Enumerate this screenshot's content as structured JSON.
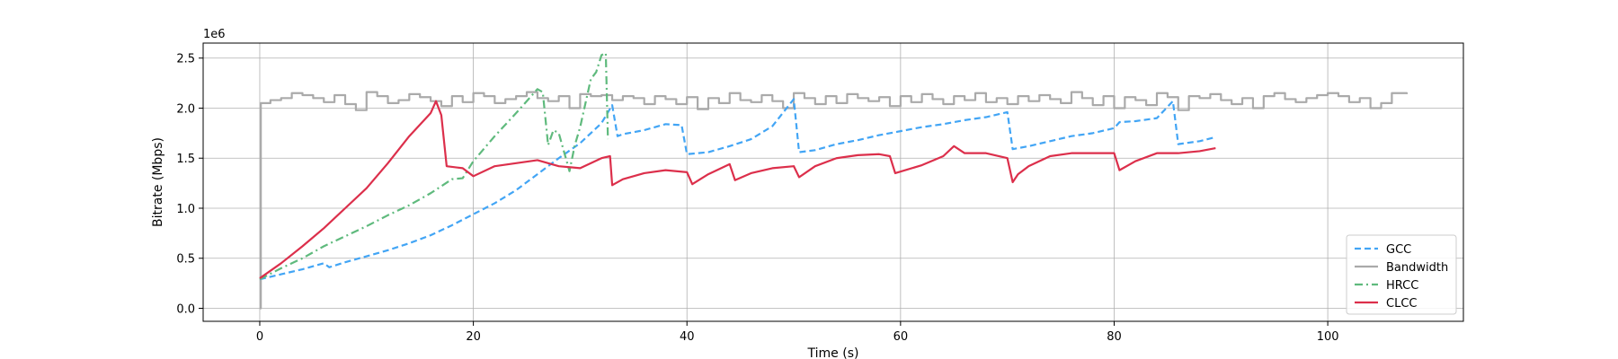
{
  "chart_data": {
    "type": "line",
    "xlabel": "Time (s)",
    "ylabel": "Bitrate (Mbps)",
    "y_offset_label": "1e6",
    "xlim": [
      -5.3,
      112.7
    ],
    "ylim": [
      -0.13,
      2.65
    ],
    "x_ticks": [
      0,
      20,
      40,
      60,
      80,
      100
    ],
    "y_ticks": [
      0.0,
      0.5,
      1.0,
      1.5,
      2.0,
      2.5
    ],
    "x_tick_labels": [
      "0",
      "20",
      "40",
      "60",
      "80",
      "100"
    ],
    "y_tick_labels": [
      "0.0",
      "0.5",
      "1.0",
      "1.5",
      "2.0",
      "2.5"
    ],
    "grid": true,
    "legend_position": "lower-right",
    "series": [
      {
        "name": "GCC",
        "color": "#42a5f5",
        "style": "dashed",
        "x": [
          0,
          2,
          4,
          6,
          6.5,
          8,
          10,
          12,
          14,
          16,
          18,
          20,
          22,
          24,
          26,
          28,
          30,
          32,
          33,
          33.5,
          34,
          36,
          38,
          39.5,
          40,
          42,
          44,
          46,
          48,
          50,
          50.5,
          52,
          54,
          56,
          58,
          60,
          62,
          64,
          66,
          68,
          70,
          70.5,
          72,
          74,
          76,
          78,
          80,
          80.5,
          82,
          84,
          85.5,
          86,
          88,
          89.5
        ],
        "y": [
          0.29,
          0.34,
          0.39,
          0.45,
          0.41,
          0.46,
          0.52,
          0.58,
          0.65,
          0.73,
          0.83,
          0.94,
          1.05,
          1.18,
          1.34,
          1.5,
          1.65,
          1.85,
          2.03,
          1.72,
          1.74,
          1.78,
          1.84,
          1.83,
          1.54,
          1.56,
          1.62,
          1.69,
          1.82,
          2.09,
          1.56,
          1.58,
          1.64,
          1.68,
          1.73,
          1.77,
          1.81,
          1.84,
          1.88,
          1.91,
          1.96,
          1.59,
          1.62,
          1.67,
          1.72,
          1.75,
          1.8,
          1.86,
          1.87,
          1.9,
          2.07,
          1.64,
          1.67,
          1.71
        ]
      },
      {
        "name": "Bandwidth",
        "color": "#aaaaaa",
        "style": "step",
        "x": [
          0,
          0.1,
          1,
          2,
          3,
          4,
          5,
          6,
          7,
          8,
          9,
          10,
          11,
          12,
          13,
          14,
          15,
          16,
          17,
          18,
          19,
          20,
          21,
          22,
          23,
          24,
          25,
          26,
          27,
          28,
          29,
          30,
          31,
          32,
          33,
          34,
          35,
          36,
          37,
          38,
          39,
          40,
          41,
          42,
          43,
          44,
          45,
          46,
          47,
          48,
          49,
          50,
          51,
          52,
          53,
          54,
          55,
          56,
          57,
          58,
          59,
          60,
          61,
          62,
          63,
          64,
          65,
          66,
          67,
          68,
          69,
          70,
          71,
          72,
          73,
          74,
          75,
          76,
          77,
          78,
          79,
          80,
          81,
          82,
          83,
          84,
          85,
          86,
          87,
          88,
          89,
          90,
          91,
          92,
          93,
          94,
          95,
          96,
          97,
          98,
          99,
          100,
          101,
          102,
          103,
          104,
          105,
          106,
          107.4
        ],
        "y": [
          0.0,
          2.05,
          2.08,
          2.1,
          2.15,
          2.13,
          2.1,
          2.06,
          2.13,
          2.04,
          1.98,
          2.16,
          2.12,
          2.05,
          2.08,
          2.14,
          2.11,
          2.07,
          2.02,
          2.12,
          2.06,
          2.15,
          2.12,
          2.05,
          2.09,
          2.12,
          2.16,
          2.1,
          2.07,
          2.12,
          2.0,
          2.14,
          2.12,
          2.13,
          2.08,
          2.12,
          2.1,
          2.04,
          2.12,
          2.09,
          2.04,
          2.11,
          1.99,
          2.1,
          2.05,
          2.15,
          2.08,
          2.06,
          2.13,
          2.07,
          2.0,
          2.15,
          2.1,
          2.04,
          2.12,
          2.05,
          2.14,
          2.1,
          2.07,
          2.11,
          2.02,
          2.12,
          2.06,
          2.14,
          2.09,
          2.04,
          2.12,
          2.08,
          2.15,
          2.06,
          2.1,
          2.04,
          2.12,
          2.07,
          2.13,
          2.09,
          2.05,
          2.16,
          2.1,
          2.03,
          2.12,
          2.0,
          2.11,
          2.08,
          2.03,
          2.15,
          2.11,
          1.98,
          2.12,
          2.1,
          2.14,
          2.08,
          2.04,
          2.1,
          2.0,
          2.12,
          2.15,
          2.09,
          2.06,
          2.1,
          2.13,
          2.15,
          2.12,
          2.06,
          2.1,
          2.0,
          2.05,
          2.15,
          2.14
        ]
      },
      {
        "name": "HRCC",
        "color": "#5fba7d",
        "style": "dashdot",
        "x": [
          0,
          2,
          4,
          6,
          8,
          10,
          12,
          14,
          16,
          18,
          19,
          20,
          22,
          24,
          26,
          26.5,
          27,
          27.5,
          28,
          29,
          29.5,
          30,
          30.5,
          31,
          31.5,
          32,
          32.4,
          32.6
        ],
        "y": [
          0.29,
          0.4,
          0.5,
          0.62,
          0.72,
          0.82,
          0.93,
          1.03,
          1.15,
          1.29,
          1.3,
          1.47,
          1.72,
          1.95,
          2.19,
          2.16,
          1.63,
          1.78,
          1.75,
          1.37,
          1.63,
          1.81,
          2.05,
          2.29,
          2.36,
          2.53,
          2.55,
          1.69
        ]
      },
      {
        "name": "CLCC",
        "color": "#dc2f4b",
        "style": "solid",
        "x": [
          0,
          2,
          4,
          6,
          8,
          10,
          12,
          14,
          16,
          16.5,
          17,
          17.5,
          19,
          20,
          22,
          24,
          26,
          28,
          30,
          32,
          32.8,
          33,
          34,
          36,
          38,
          40,
          40.5,
          42,
          44,
          44.5,
          46,
          48,
          50,
          50.5,
          52,
          54,
          56,
          58,
          59,
          59.5,
          62,
          64,
          65,
          66,
          68,
          70,
          70.5,
          71,
          72,
          74,
          76,
          78,
          80,
          80.5,
          82,
          84,
          86,
          88,
          89.5
        ],
        "y": [
          0.3,
          0.45,
          0.62,
          0.8,
          1.0,
          1.2,
          1.45,
          1.72,
          1.95,
          2.07,
          1.93,
          1.42,
          1.4,
          1.32,
          1.42,
          1.45,
          1.48,
          1.42,
          1.4,
          1.5,
          1.52,
          1.23,
          1.29,
          1.35,
          1.38,
          1.36,
          1.24,
          1.34,
          1.44,
          1.28,
          1.35,
          1.4,
          1.42,
          1.31,
          1.42,
          1.5,
          1.53,
          1.54,
          1.52,
          1.35,
          1.43,
          1.52,
          1.62,
          1.55,
          1.55,
          1.5,
          1.26,
          1.34,
          1.42,
          1.52,
          1.55,
          1.55,
          1.55,
          1.38,
          1.47,
          1.55,
          1.55,
          1.57,
          1.6
        ]
      }
    ]
  }
}
